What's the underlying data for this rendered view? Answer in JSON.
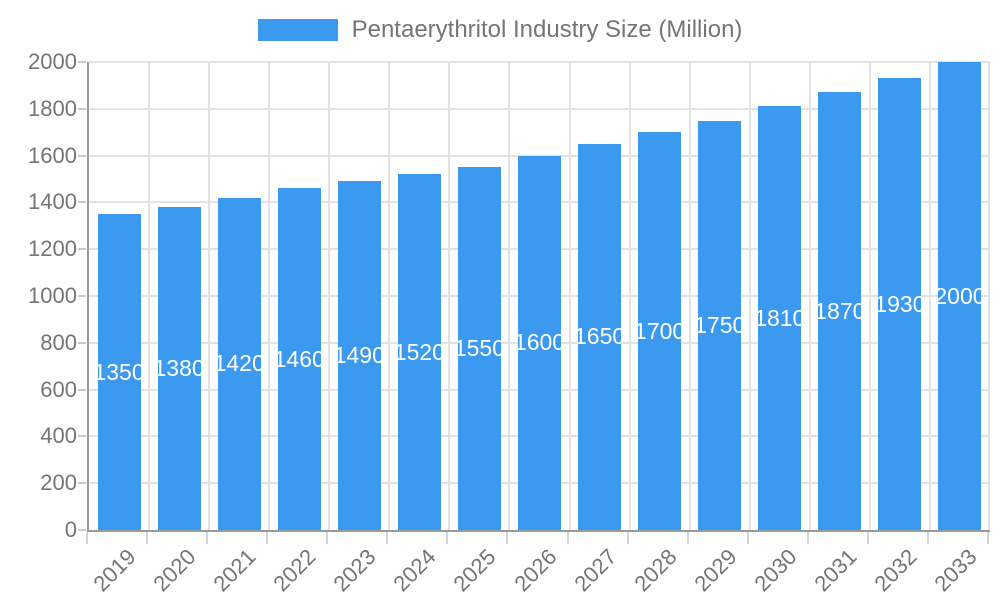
{
  "legend": {
    "label": "Pentaerythritol Industry Size (Million)"
  },
  "chart_data": {
    "type": "bar",
    "title": "Pentaerythritol Industry Size (Million)",
    "categories": [
      "2019",
      "2020",
      "2021",
      "2022",
      "2023",
      "2024",
      "2025",
      "2026",
      "2027",
      "2028",
      "2029",
      "2030",
      "2031",
      "2032",
      "2033"
    ],
    "values": [
      1350,
      1380,
      1420,
      1460,
      1490,
      1520,
      1550,
      1600,
      1650,
      1700,
      1750,
      1810,
      1870,
      1930,
      2000
    ],
    "xlabel": "",
    "ylabel": "",
    "ylim": [
      0,
      2000
    ],
    "ytick_step": 200,
    "grid": true,
    "legend_position": "top",
    "bar_color": "#3b99f0",
    "bar_label_color": "#ffffff",
    "axis_text_color": "#757575",
    "grid_color": "#e2e2e2",
    "axis_line_color": "#9a9a9a"
  }
}
